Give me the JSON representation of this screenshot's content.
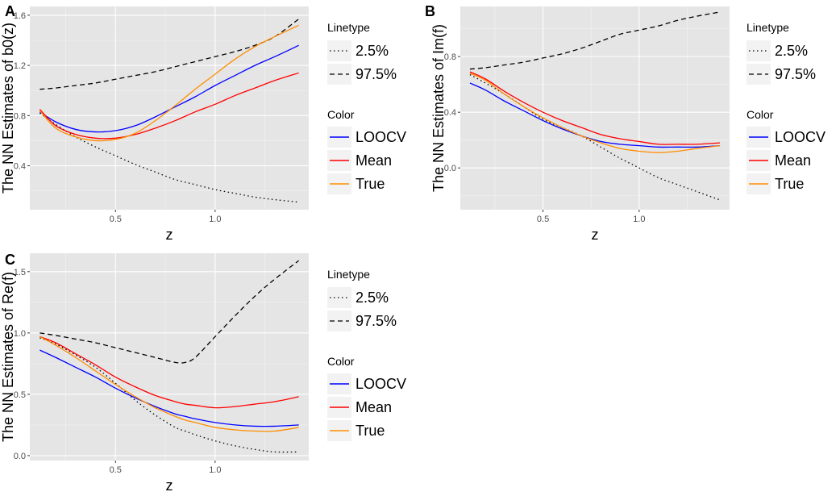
{
  "figure": {
    "legend": {
      "linetype_title": "Linetype",
      "linetype_items": [
        {
          "label": "2.5%",
          "style": "dotted"
        },
        {
          "label": "97.5%",
          "style": "dashed"
        }
      ],
      "color_title": "Color",
      "color_items": [
        {
          "label": "LOOCV",
          "color": "#0000ff"
        },
        {
          "label": "Mean",
          "color": "#ff0000"
        },
        {
          "label": "True",
          "color": "#ff8c00"
        }
      ]
    },
    "style": {
      "panel_background": "#e5e5e5",
      "grid_major": "#ffffff",
      "bound_color": "#000000"
    }
  },
  "chart_data": [
    {
      "panel": "A",
      "type": "line",
      "xlabel": "z",
      "ylabel": "The NN Estimates of b0(z)",
      "xlim": [
        0.07,
        1.47
      ],
      "ylim": [
        0.05,
        1.67
      ],
      "xticks": [
        0.5,
        1.0
      ],
      "xtick_labels": [
        "0.5",
        "1.0"
      ],
      "yticks": [
        0.4,
        0.8,
        1.2,
        1.6
      ],
      "ytick_labels": [
        "0.4",
        "0.8",
        "1.2",
        "1.6"
      ],
      "x": [
        0.12,
        0.2,
        0.3,
        0.4,
        0.5,
        0.6,
        0.7,
        0.8,
        0.9,
        1.0,
        1.1,
        1.2,
        1.3,
        1.42
      ],
      "series": [
        {
          "name": "2.5%",
          "linetype": "dotted",
          "color": "#000000",
          "values": [
            0.82,
            0.73,
            0.63,
            0.55,
            0.48,
            0.41,
            0.35,
            0.29,
            0.25,
            0.21,
            0.18,
            0.15,
            0.13,
            0.11
          ]
        },
        {
          "name": "97.5%",
          "linetype": "dashed",
          "color": "#000000",
          "values": [
            1.01,
            1.02,
            1.04,
            1.06,
            1.09,
            1.12,
            1.15,
            1.19,
            1.23,
            1.27,
            1.31,
            1.36,
            1.43,
            1.57
          ]
        },
        {
          "name": "LOOCV",
          "linetype": "solid",
          "color": "#0000ff",
          "values": [
            0.83,
            0.75,
            0.69,
            0.67,
            0.68,
            0.72,
            0.79,
            0.87,
            0.95,
            1.04,
            1.12,
            1.2,
            1.27,
            1.36
          ]
        },
        {
          "name": "Mean",
          "linetype": "solid",
          "color": "#ff0000",
          "values": [
            0.85,
            0.72,
            0.65,
            0.62,
            0.62,
            0.65,
            0.7,
            0.76,
            0.83,
            0.89,
            0.96,
            1.02,
            1.08,
            1.14
          ]
        },
        {
          "name": "True",
          "linetype": "solid",
          "color": "#ff8c00",
          "values": [
            0.84,
            0.7,
            0.63,
            0.6,
            0.61,
            0.66,
            0.76,
            0.88,
            1.01,
            1.13,
            1.25,
            1.35,
            1.43,
            1.52
          ]
        }
      ]
    },
    {
      "panel": "B",
      "type": "line",
      "xlabel": "z",
      "ylabel": "The NN Estimates of Im(f)",
      "xlim": [
        0.07,
        1.47
      ],
      "ylim": [
        -0.3,
        1.16
      ],
      "xticks": [
        0.5,
        1.0
      ],
      "xtick_labels": [
        "0.5",
        "1.0"
      ],
      "yticks": [
        0.0,
        0.4,
        0.8
      ],
      "ytick_labels": [
        "0.0",
        "0.4",
        "0.8"
      ],
      "x": [
        0.12,
        0.2,
        0.3,
        0.4,
        0.5,
        0.6,
        0.7,
        0.8,
        0.9,
        1.0,
        1.1,
        1.2,
        1.3,
        1.42
      ],
      "series": [
        {
          "name": "2.5%",
          "linetype": "dotted",
          "color": "#000000",
          "values": [
            0.67,
            0.61,
            0.53,
            0.44,
            0.35,
            0.29,
            0.23,
            0.15,
            0.07,
            0.0,
            -0.07,
            -0.12,
            -0.17,
            -0.23
          ]
        },
        {
          "name": "97.5%",
          "linetype": "dashed",
          "color": "#000000",
          "values": [
            0.71,
            0.72,
            0.74,
            0.76,
            0.79,
            0.82,
            0.86,
            0.91,
            0.96,
            0.99,
            1.02,
            1.06,
            1.09,
            1.12
          ]
        },
        {
          "name": "LOOCV",
          "linetype": "solid",
          "color": "#0000ff",
          "values": [
            0.61,
            0.56,
            0.48,
            0.41,
            0.34,
            0.28,
            0.23,
            0.19,
            0.17,
            0.16,
            0.15,
            0.15,
            0.15,
            0.16
          ]
        },
        {
          "name": "Mean",
          "linetype": "solid",
          "color": "#ff0000",
          "values": [
            0.69,
            0.64,
            0.55,
            0.47,
            0.4,
            0.34,
            0.29,
            0.24,
            0.21,
            0.19,
            0.17,
            0.17,
            0.17,
            0.18
          ]
        },
        {
          "name": "True",
          "linetype": "solid",
          "color": "#ff8c00",
          "values": [
            0.68,
            0.63,
            0.53,
            0.44,
            0.36,
            0.29,
            0.23,
            0.18,
            0.14,
            0.12,
            0.11,
            0.12,
            0.14,
            0.16
          ]
        }
      ]
    },
    {
      "panel": "C",
      "type": "line",
      "xlabel": "z",
      "ylabel": "The NN Estimates of Re(f)",
      "xlim": [
        0.07,
        1.47
      ],
      "ylim": [
        -0.04,
        1.65
      ],
      "xticks": [
        0.5,
        1.0
      ],
      "xtick_labels": [
        "0.5",
        "1.0"
      ],
      "yticks": [
        0.0,
        0.5,
        1.0,
        1.5
      ],
      "ytick_labels": [
        "0.0",
        "0.5",
        "1.0",
        "1.5"
      ],
      "x": [
        0.12,
        0.2,
        0.3,
        0.4,
        0.5,
        0.6,
        0.7,
        0.8,
        0.85,
        0.9,
        1.0,
        1.1,
        1.2,
        1.3,
        1.42
      ],
      "series": [
        {
          "name": "2.5%",
          "linetype": "dotted",
          "color": "#000000",
          "values": [
            0.96,
            0.91,
            0.82,
            0.72,
            0.59,
            0.45,
            0.33,
            0.23,
            0.2,
            0.17,
            0.12,
            0.08,
            0.05,
            0.03,
            0.03
          ]
        },
        {
          "name": "97.5%",
          "linetype": "dashed",
          "color": "#000000",
          "values": [
            1.0,
            0.98,
            0.95,
            0.92,
            0.88,
            0.84,
            0.8,
            0.76,
            0.76,
            0.8,
            0.97,
            1.14,
            1.3,
            1.44,
            1.59
          ]
        },
        {
          "name": "LOOCV",
          "linetype": "solid",
          "color": "#0000ff",
          "values": [
            0.86,
            0.8,
            0.72,
            0.64,
            0.55,
            0.47,
            0.4,
            0.34,
            0.32,
            0.3,
            0.27,
            0.25,
            0.24,
            0.24,
            0.25
          ]
        },
        {
          "name": "Mean",
          "linetype": "solid",
          "color": "#ff0000",
          "values": [
            0.97,
            0.92,
            0.83,
            0.74,
            0.64,
            0.56,
            0.49,
            0.44,
            0.42,
            0.41,
            0.39,
            0.4,
            0.42,
            0.44,
            0.48
          ]
        },
        {
          "name": "True",
          "linetype": "solid",
          "color": "#ff8c00",
          "values": [
            0.97,
            0.9,
            0.8,
            0.69,
            0.58,
            0.48,
            0.39,
            0.32,
            0.29,
            0.27,
            0.23,
            0.21,
            0.2,
            0.2,
            0.23
          ]
        }
      ]
    }
  ]
}
